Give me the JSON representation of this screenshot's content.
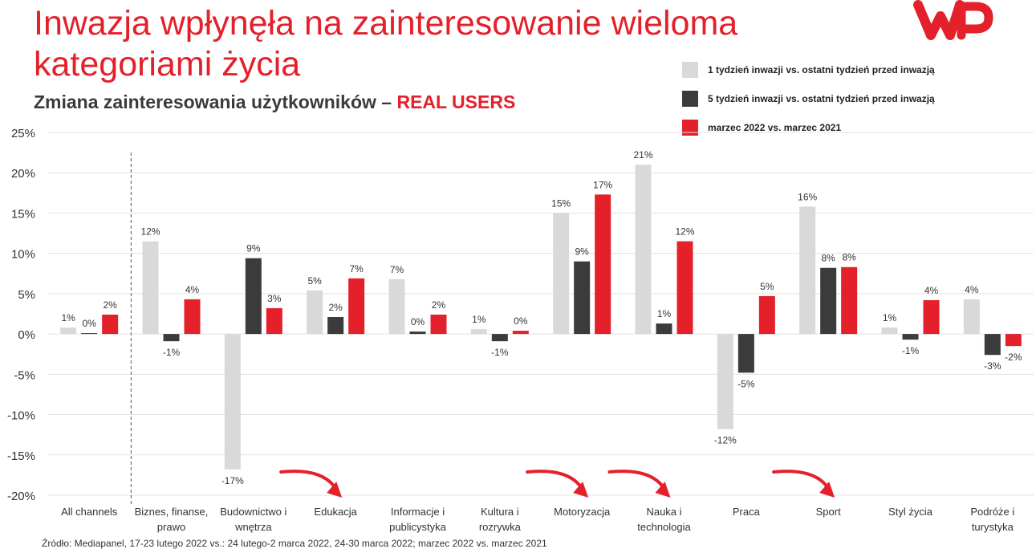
{
  "header": {
    "title": "Inwazja wpłynęła na zainteresowanie wieloma kategoriami życia",
    "subtitle_main": "Zmiana zainteresowania użytkowników –",
    "subtitle_accent": "REAL USERS"
  },
  "logo": {
    "icon": "wp-logo",
    "color": "#e4202b"
  },
  "source": "Źródło: Mediapanel, 17-23 lutego 2022 vs.: 24 lutego-2 marca 2022, 24-30 marca 2022; marzec 2022 vs. marzec 2021",
  "colors": {
    "accent": "#e4202b",
    "series": [
      "#d9d9d9",
      "#3b3b3b",
      "#e4202b"
    ],
    "grid": "#e3e3e3"
  },
  "chart_data": {
    "type": "bar",
    "categories": [
      [
        "All channels"
      ],
      [
        "Biznes, finanse,",
        "prawo"
      ],
      [
        "Budownictwo i",
        "wnętrza"
      ],
      [
        "Edukacja"
      ],
      [
        "Informacje i",
        "publicystyka"
      ],
      [
        "Kultura i",
        "rozrywka"
      ],
      [
        "Motoryzacja"
      ],
      [
        "Nauka i",
        "technologia"
      ],
      [
        "Praca"
      ],
      [
        "Sport"
      ],
      [
        "Styl życia"
      ],
      [
        "Podróże i",
        "turystyka"
      ]
    ],
    "series": [
      {
        "name": "1 tydzień inwazji vs. ostatni tydzień przed inwazją",
        "color": "#d9d9d9",
        "values": [
          0.8,
          11.5,
          -16.8,
          5.4,
          6.8,
          0.6,
          15.0,
          21.0,
          -11.8,
          15.8,
          0.8,
          4.3
        ],
        "labels": [
          "1%",
          "12%",
          "-17%",
          "5%",
          "7%",
          "1%",
          "15%",
          "21%",
          "-12%",
          "16%",
          "1%",
          "4%"
        ]
      },
      {
        "name": "5 tydzień inwazji vs. ostatni tydzień przed inwazją",
        "color": "#3b3b3b",
        "values": [
          0.1,
          -0.9,
          9.4,
          2.1,
          0.3,
          -0.9,
          9.0,
          1.3,
          -4.8,
          8.2,
          -0.7,
          -2.6
        ],
        "labels": [
          "0%",
          "-1%",
          "9%",
          "2%",
          "0%",
          "-1%",
          "9%",
          "1%",
          "-5%",
          "8%",
          "-1%",
          "-3%"
        ]
      },
      {
        "name": "marzec 2022 vs. marzec 2021",
        "color": "#e4202b",
        "values": [
          2.4,
          4.3,
          3.2,
          6.9,
          2.4,
          0.4,
          17.3,
          11.5,
          4.7,
          8.3,
          4.2,
          -1.5
        ],
        "labels": [
          "2%",
          "4%",
          "3%",
          "7%",
          "2%",
          "0%",
          "17%",
          "12%",
          "5%",
          "8%",
          "4%",
          "-2%"
        ]
      }
    ],
    "y_ticks": [
      "25%",
      "20%",
      "15%",
      "10%",
      "5%",
      "0%",
      "-5%",
      "-10%",
      "-15%",
      "-20%"
    ],
    "ylim": [
      -20,
      25
    ],
    "grid": true,
    "legend_position": "top-right",
    "highlighted_categories": [
      "Edukacja",
      "Motoryzacja",
      "Nauka i technologia",
      "Sport"
    ]
  }
}
